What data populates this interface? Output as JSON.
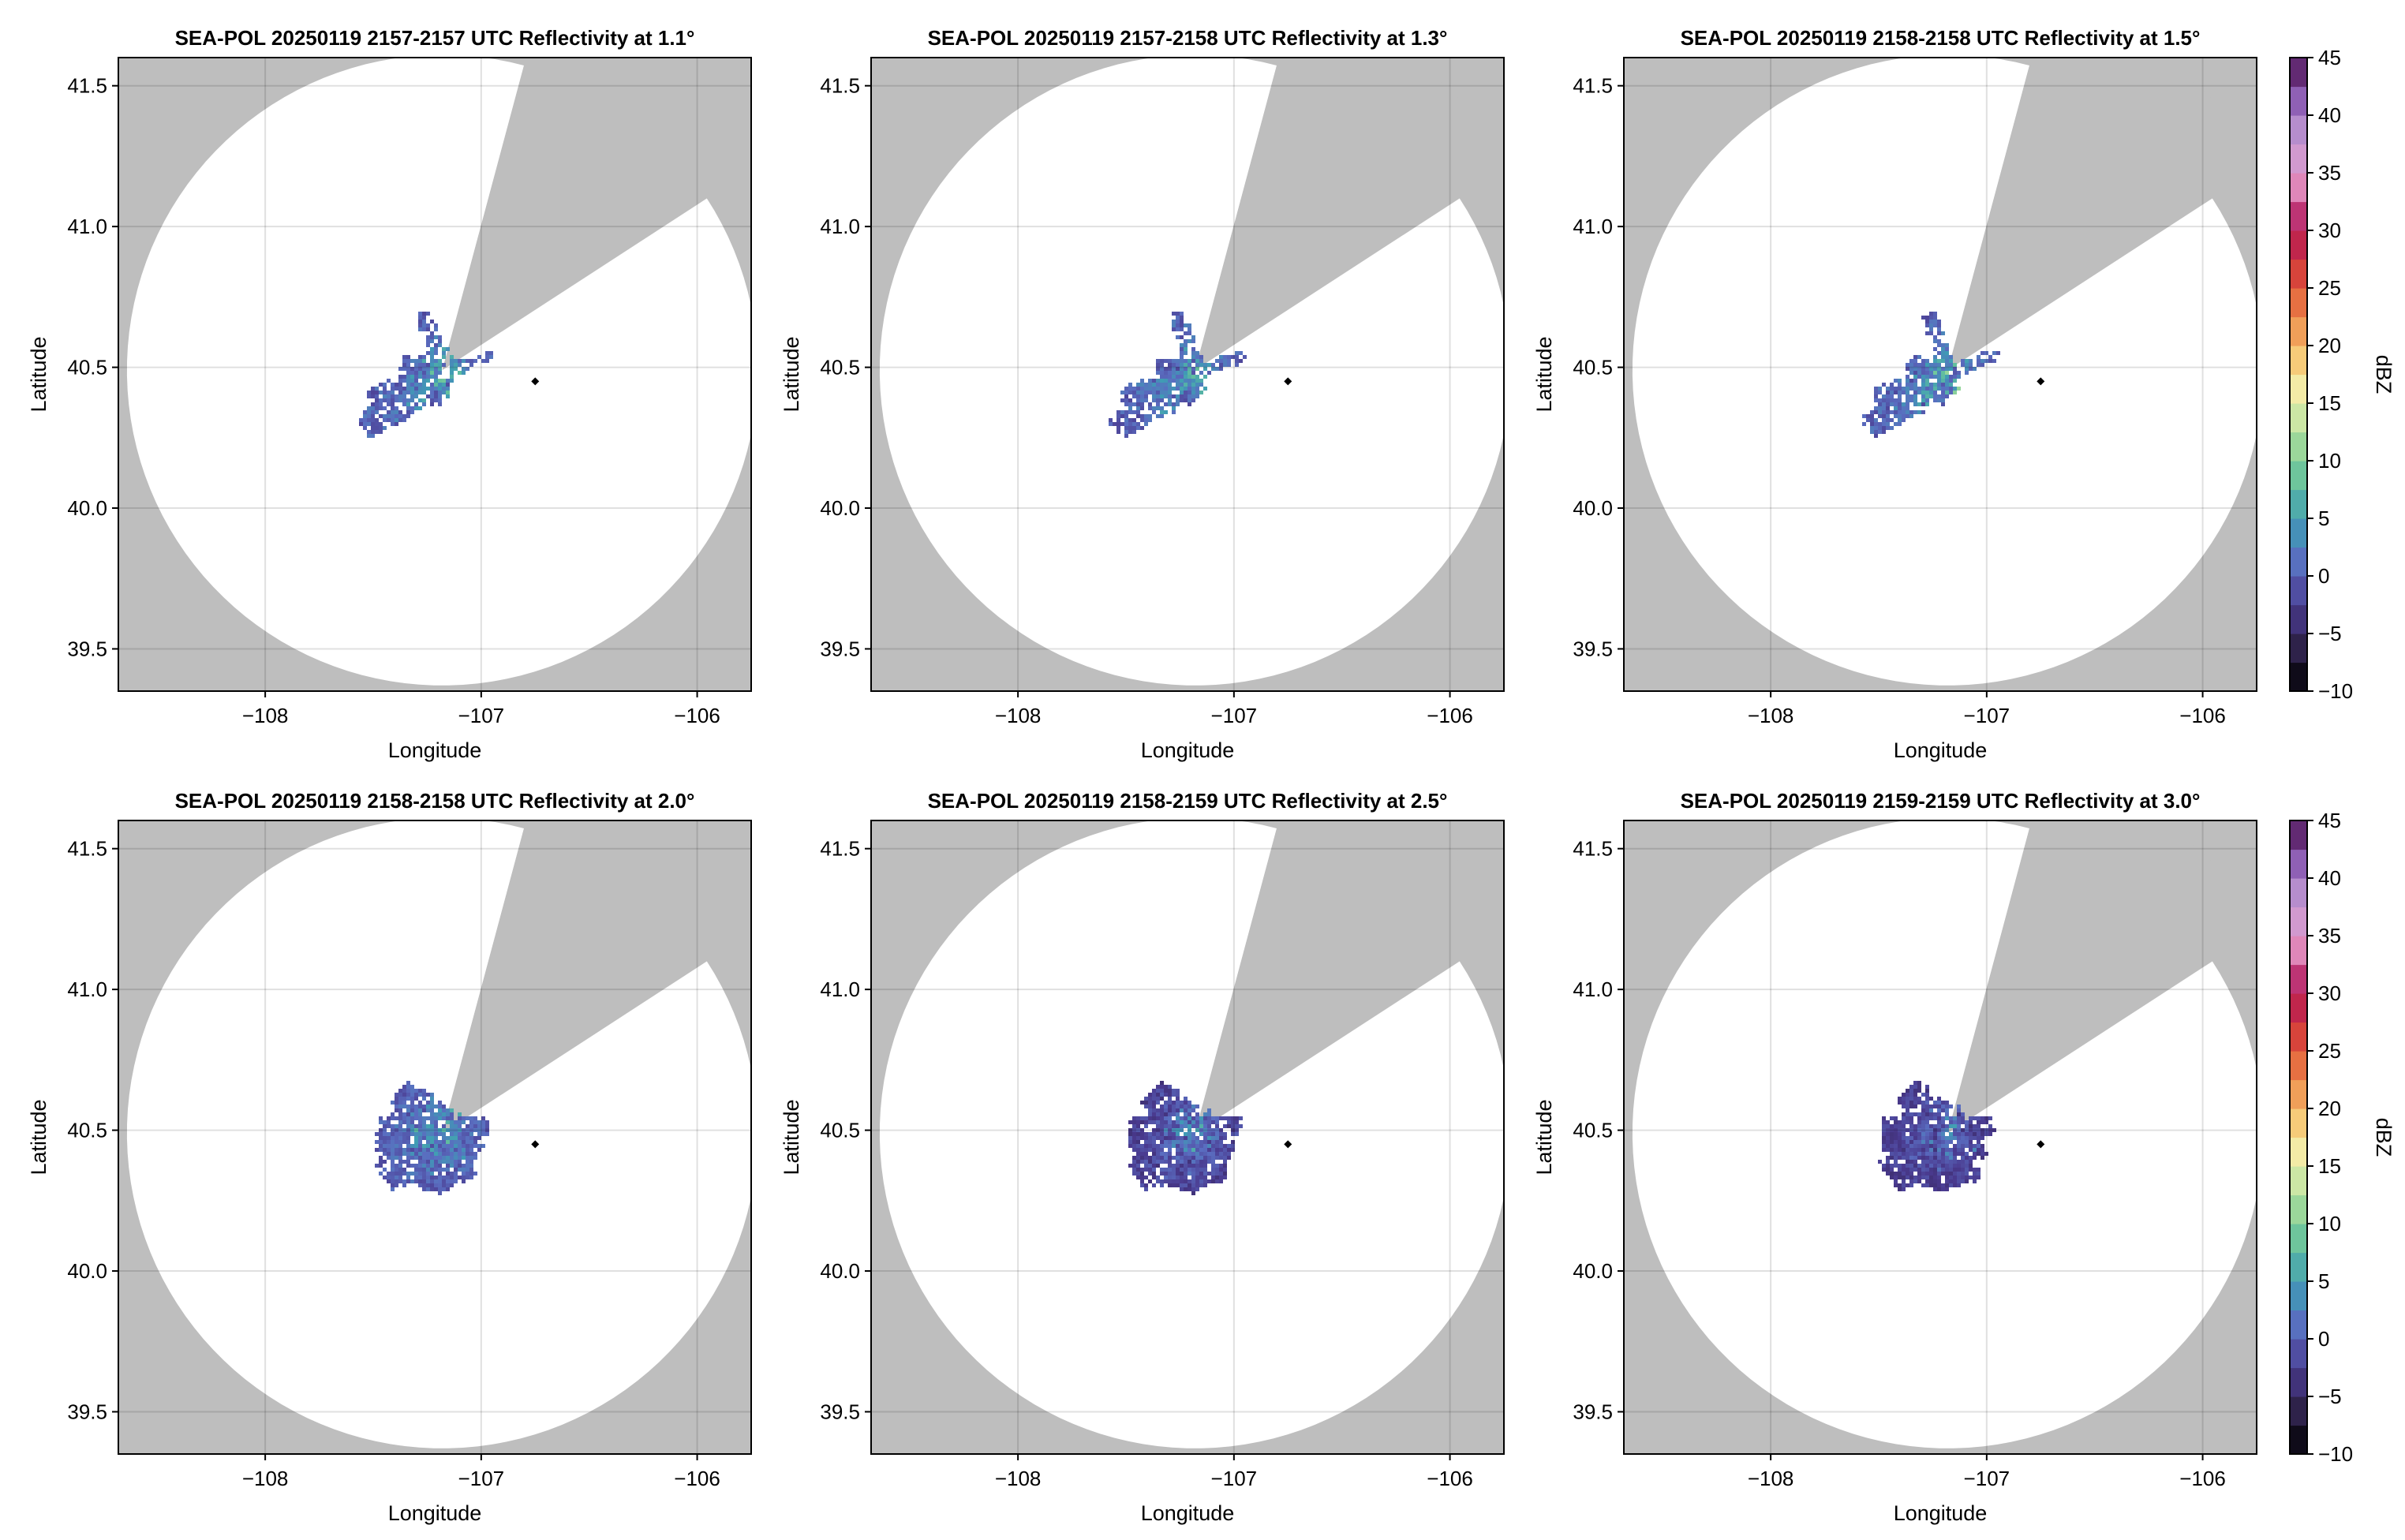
{
  "colors": {
    "masked": "#bebebe",
    "background": "#ffffff",
    "radar_marker": "#000000"
  },
  "colormap": {
    "name": "reflectivity",
    "stops": [
      "#000000",
      "#2d2148",
      "#4a3a8f",
      "#5a6dc0",
      "#3f9bb5",
      "#66c29c",
      "#a9dd9a",
      "#f2f2b0",
      "#f7c46f",
      "#ea7d44",
      "#d43d3a",
      "#b0155a",
      "#e28fc0",
      "#c7a0d8",
      "#8e5fb4",
      "#4b0f52"
    ]
  },
  "chart_data": [
    {
      "type": "heatmap",
      "title": "SEA-POL 20250119 2157-2157 UTC Reflectivity at 1.1°",
      "xlabel": "Longitude",
      "ylabel": "Latitude",
      "xlim": [
        -108.68,
        -105.75
      ],
      "ylim": [
        39.35,
        41.6
      ],
      "xticks": [
        -108,
        -107,
        -106
      ],
      "xtick_labels": [
        "−108",
        "−107",
        "−106"
      ],
      "yticks": [
        39.5,
        40.0,
        40.5,
        41.0,
        41.5
      ],
      "ytick_labels": [
        "39.5",
        "40.0",
        "40.5",
        "41.0",
        "41.5"
      ],
      "grid": true,
      "radar": {
        "lon": -107.18,
        "lat": 40.49
      },
      "range_edge_deg_lat": 1.12,
      "blocked_sectors_deg": [
        [
          15,
          33
        ],
        [
          57,
          360
        ]
      ],
      "marker": {
        "lon": -106.75,
        "lat": 40.45
      },
      "echo_extent": "small",
      "echo_dbz_range": [
        -2,
        12
      ]
    },
    {
      "type": "heatmap",
      "title": "SEA-POL 20250119 2157-2158 UTC Reflectivity at 1.3°",
      "xlabel": "Longitude",
      "ylabel": "Latitude",
      "xlim": [
        -108.68,
        -105.75
      ],
      "ylim": [
        39.35,
        41.6
      ],
      "xticks": [
        -108,
        -107,
        -106
      ],
      "xtick_labels": [
        "−108",
        "−107",
        "−106"
      ],
      "yticks": [
        39.5,
        40.0,
        40.5,
        41.0,
        41.5
      ],
      "ytick_labels": [
        "39.5",
        "40.0",
        "40.5",
        "41.0",
        "41.5"
      ],
      "grid": true,
      "radar": {
        "lon": -107.18,
        "lat": 40.49
      },
      "range_edge_deg_lat": 1.12,
      "blocked_sectors_deg": [
        [
          15,
          33
        ],
        [
          57,
          360
        ]
      ],
      "marker": {
        "lon": -106.75,
        "lat": 40.45
      },
      "echo_extent": "small",
      "echo_dbz_range": [
        -2,
        12
      ]
    },
    {
      "type": "heatmap",
      "title": "SEA-POL 20250119 2158-2158 UTC Reflectivity at 1.5°",
      "xlabel": "Longitude",
      "ylabel": "Latitude",
      "xlim": [
        -108.68,
        -105.75
      ],
      "ylim": [
        39.35,
        41.6
      ],
      "xticks": [
        -108,
        -107,
        -106
      ],
      "xtick_labels": [
        "−108",
        "−107",
        "−106"
      ],
      "yticks": [
        39.5,
        40.0,
        40.5,
        41.0,
        41.5
      ],
      "ytick_labels": [
        "39.5",
        "40.0",
        "40.5",
        "41.0",
        "41.5"
      ],
      "grid": true,
      "radar": {
        "lon": -107.18,
        "lat": 40.49
      },
      "range_edge_deg_lat": 1.12,
      "blocked_sectors_deg": [
        [
          15,
          33
        ],
        [
          57,
          360
        ]
      ],
      "marker": {
        "lon": -106.75,
        "lat": 40.45
      },
      "echo_extent": "small",
      "echo_dbz_range": [
        -2,
        12
      ]
    },
    {
      "type": "heatmap",
      "title": "SEA-POL 20250119 2158-2158 UTC Reflectivity at 2.0°",
      "xlabel": "Longitude",
      "ylabel": "Latitude",
      "xlim": [
        -108.68,
        -105.75
      ],
      "ylim": [
        39.35,
        41.6
      ],
      "xticks": [
        -108,
        -107,
        -106
      ],
      "xtick_labels": [
        "−108",
        "−107",
        "−106"
      ],
      "yticks": [
        39.5,
        40.0,
        40.5,
        41.0,
        41.5
      ],
      "ytick_labels": [
        "39.5",
        "40.0",
        "40.5",
        "41.0",
        "41.5"
      ],
      "grid": true,
      "radar": {
        "lon": -107.18,
        "lat": 40.49
      },
      "range_edge_deg_lat": 1.12,
      "blocked_sectors_deg": [
        [
          15,
          33
        ],
        [
          57,
          360
        ]
      ],
      "marker": {
        "lon": -106.75,
        "lat": 40.45
      },
      "echo_extent": "medium",
      "echo_dbz_range": [
        -2,
        10
      ]
    },
    {
      "type": "heatmap",
      "title": "SEA-POL 20250119 2158-2159 UTC Reflectivity at 2.5°",
      "xlabel": "Longitude",
      "ylabel": "Latitude",
      "xlim": [
        -108.68,
        -105.75
      ],
      "ylim": [
        39.35,
        41.6
      ],
      "xticks": [
        -108,
        -107,
        -106
      ],
      "xtick_labels": [
        "−108",
        "−107",
        "−106"
      ],
      "yticks": [
        39.5,
        40.0,
        40.5,
        41.0,
        41.5
      ],
      "ytick_labels": [
        "39.5",
        "40.0",
        "40.5",
        "41.0",
        "41.5"
      ],
      "grid": true,
      "radar": {
        "lon": -107.18,
        "lat": 40.49
      },
      "range_edge_deg_lat": 1.12,
      "blocked_sectors_deg": [
        [
          15,
          33
        ],
        [
          57,
          360
        ]
      ],
      "marker": {
        "lon": -106.75,
        "lat": 40.45
      },
      "echo_extent": "medium",
      "echo_dbz_range": [
        -4,
        8
      ]
    },
    {
      "type": "heatmap",
      "title": "SEA-POL 20250119 2159-2159 UTC Reflectivity at 3.0°",
      "xlabel": "Longitude",
      "ylabel": "Latitude",
      "xlim": [
        -108.68,
        -105.75
      ],
      "ylim": [
        39.35,
        41.6
      ],
      "xticks": [
        -108,
        -107,
        -106
      ],
      "xtick_labels": [
        "−108",
        "−107",
        "−106"
      ],
      "yticks": [
        39.5,
        40.0,
        40.5,
        41.0,
        41.5
      ],
      "ytick_labels": [
        "39.5",
        "40.0",
        "40.5",
        "41.0",
        "41.5"
      ],
      "grid": true,
      "radar": {
        "lon": -107.18,
        "lat": 40.49
      },
      "range_edge_deg_lat": 1.12,
      "blocked_sectors_deg": [
        [
          15,
          33
        ],
        [
          57,
          360
        ]
      ],
      "marker": {
        "lon": -106.75,
        "lat": 40.45
      },
      "echo_extent": "medium",
      "echo_dbz_range": [
        -4,
        6
      ]
    }
  ],
  "colorbars": [
    {
      "label": "dBZ",
      "vmin": -10,
      "vmax": 45,
      "ticks": [
        -10,
        -5,
        0,
        5,
        10,
        15,
        20,
        25,
        30,
        35,
        40,
        45
      ],
      "tick_labels": [
        "−10",
        "−5",
        "0",
        "5",
        "10",
        "15",
        "20",
        "25",
        "30",
        "35",
        "40",
        "45"
      ]
    },
    {
      "label": "dBZ",
      "vmin": -10,
      "vmax": 45,
      "ticks": [
        -10,
        -5,
        0,
        5,
        10,
        15,
        20,
        25,
        30,
        35,
        40,
        45
      ],
      "tick_labels": [
        "−10",
        "−5",
        "0",
        "5",
        "10",
        "15",
        "20",
        "25",
        "30",
        "35",
        "40",
        "45"
      ]
    }
  ]
}
